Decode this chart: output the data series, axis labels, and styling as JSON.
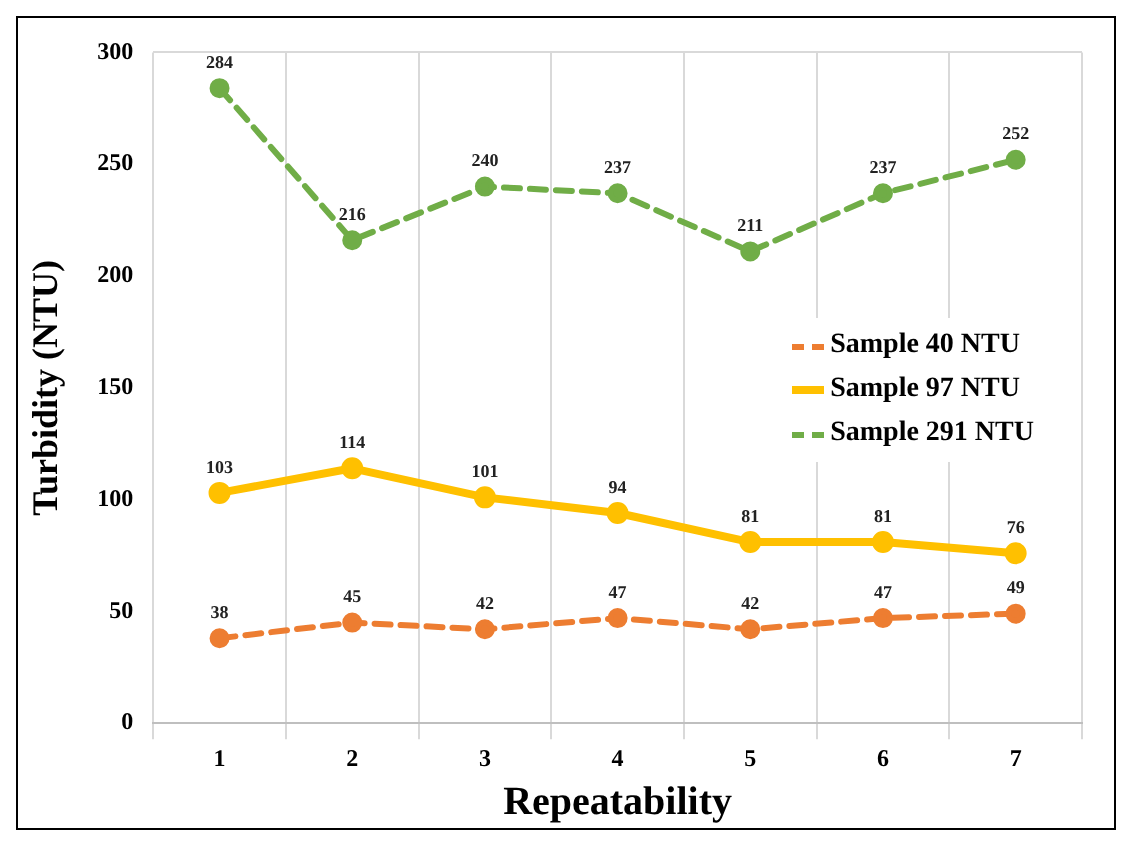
{
  "chart_data": {
    "type": "line",
    "xlabel": "Repeatability",
    "ylabel": "Turbidity (NTU)",
    "categories": [
      "1",
      "2",
      "3",
      "4",
      "5",
      "6",
      "7"
    ],
    "series": [
      {
        "name": "Sample 40 NTU",
        "color": "#ed7d31",
        "line_style": "dashed",
        "values": [
          38,
          45,
          42,
          47,
          42,
          47,
          49
        ]
      },
      {
        "name": "Sample 97 NTU",
        "color": "#ffc000",
        "line_style": "solid",
        "values": [
          103,
          114,
          101,
          94,
          81,
          81,
          76
        ]
      },
      {
        "name": "Sample 291 NTU",
        "color": "#70ad47",
        "line_style": "dashed",
        "values": [
          284,
          216,
          240,
          237,
          211,
          237,
          252
        ]
      }
    ],
    "ylim": [
      0,
      300
    ],
    "yticks": [
      0,
      50,
      100,
      150,
      200,
      250,
      300
    ],
    "grid": "x",
    "legend": "right",
    "marker": "circle",
    "data_labels": true
  }
}
